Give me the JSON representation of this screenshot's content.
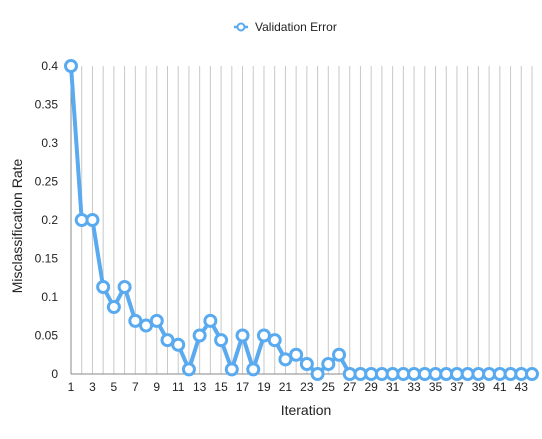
{
  "chart_data": {
    "type": "line",
    "title": "",
    "xlabel": "Iteration",
    "ylabel": "Misclassification Rate",
    "ylim": [
      0,
      0.4
    ],
    "yticks": [
      0,
      0.05,
      0.1,
      0.15,
      0.2,
      0.25,
      0.3,
      0.35,
      0.4
    ],
    "ytick_labels": [
      "0",
      "0.05",
      "0.1",
      "0.15",
      "0.2",
      "0.25",
      "0.3",
      "0.35",
      "0.4"
    ],
    "xlim": [
      1,
      44
    ],
    "xtick_labels": [
      "1",
      "3",
      "5",
      "7",
      "9",
      "11",
      "13",
      "15",
      "17",
      "19",
      "21",
      "23",
      "25",
      "27",
      "29",
      "31",
      "33",
      "35",
      "37",
      "39",
      "41",
      "43"
    ],
    "grid": "vertical",
    "legend": "top-center",
    "series": [
      {
        "name": "Validation Error",
        "color": "#5aaaf0",
        "x": [
          1,
          2,
          3,
          4,
          5,
          6,
          7,
          8,
          9,
          10,
          11,
          12,
          13,
          14,
          15,
          16,
          17,
          18,
          19,
          20,
          21,
          22,
          23,
          24,
          25,
          26,
          27,
          28,
          29,
          30,
          31,
          32,
          33,
          34,
          35,
          36,
          37,
          38,
          39,
          40,
          41,
          42,
          43,
          44
        ],
        "values": [
          0.4,
          0.2,
          0.2,
          0.113,
          0.087,
          0.113,
          0.069,
          0.063,
          0.069,
          0.044,
          0.038,
          0.006,
          0.05,
          0.069,
          0.044,
          0.006,
          0.05,
          0.006,
          0.05,
          0.044,
          0.019,
          0.025,
          0.013,
          0.0,
          0.013,
          0.025,
          0,
          0,
          0,
          0,
          0,
          0,
          0,
          0,
          0,
          0,
          0,
          0,
          0,
          0,
          0,
          0,
          0,
          0
        ]
      }
    ]
  }
}
